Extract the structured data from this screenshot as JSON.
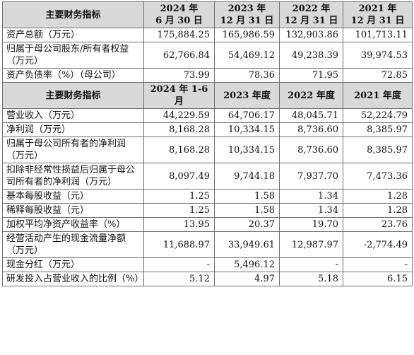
{
  "table": {
    "header1": {
      "label": "主要财务指标",
      "cols": [
        {
          "l1": "2024 年",
          "l2": "6 月 30 日"
        },
        {
          "l1": "2023 年",
          "l2": "12 月 31 日"
        },
        {
          "l1": "2022 年",
          "l2": "12 月 31 日"
        },
        {
          "l1": "2021 年",
          "l2": "12 月 31 日"
        }
      ]
    },
    "rows1": [
      {
        "label": "资产总额（万元）",
        "values": [
          "175,884.25",
          "165,986.59",
          "132,903.86",
          "101,713.11"
        ]
      },
      {
        "label": "归属于母公司股东/所有者权益（万元）",
        "values": [
          "62,766.84",
          "54,469.12",
          "49,238.39",
          "39,974.53"
        ]
      },
      {
        "label": "资产负债率（%）（母公司）",
        "values": [
          "73.99",
          "78.36",
          "71.95",
          "72.85"
        ]
      }
    ],
    "header2": {
      "label": "主要财务指标",
      "cols": [
        "2024 年 1-6 月",
        "2023 年度",
        "2022 年度",
        "2021 年度"
      ]
    },
    "rows2": [
      {
        "label": "营业收入（万元）",
        "values": [
          "44,229.59",
          "64,706.17",
          "48,045.71",
          "52,224.79"
        ]
      },
      {
        "label": "净利润（万元）",
        "values": [
          "8,168.28",
          "10,334.15",
          "8,736.60",
          "8,385.97"
        ]
      },
      {
        "label": "归属于母公司所有者的净利润（万元）",
        "values": [
          "8,168.28",
          "10,334.15",
          "8,736.60",
          "8,385.97"
        ]
      },
      {
        "label": "扣除非经常性损益后归属于母公司所有者的净利润（万元）",
        "values": [
          "8,097.49",
          "9,744.18",
          "7,937.70",
          "7,473.36"
        ]
      },
      {
        "label": "基本每股收益（元）",
        "values": [
          "1.25",
          "1.58",
          "1.34",
          "1.28"
        ]
      },
      {
        "label": "稀释每股收益（元）",
        "values": [
          "1.25",
          "1.58",
          "1.34",
          "1.28"
        ]
      },
      {
        "label": "加权平均净资产收益率（%）",
        "values": [
          "13.95",
          "20.37",
          "19.70",
          "23.76"
        ]
      },
      {
        "label": "经营活动产生的现金流量净额（万元）",
        "values": [
          "11,688.97",
          "33,949.61",
          "12,987.97",
          "-2,774.49"
        ]
      },
      {
        "label": "现金分红（万元）",
        "values": [
          "-",
          "5,496.12",
          "-",
          "-"
        ]
      },
      {
        "label": "研发投入占营业收入的比例（%）",
        "values": [
          "5.12",
          "4.97",
          "5.18",
          "6.15"
        ]
      }
    ]
  }
}
